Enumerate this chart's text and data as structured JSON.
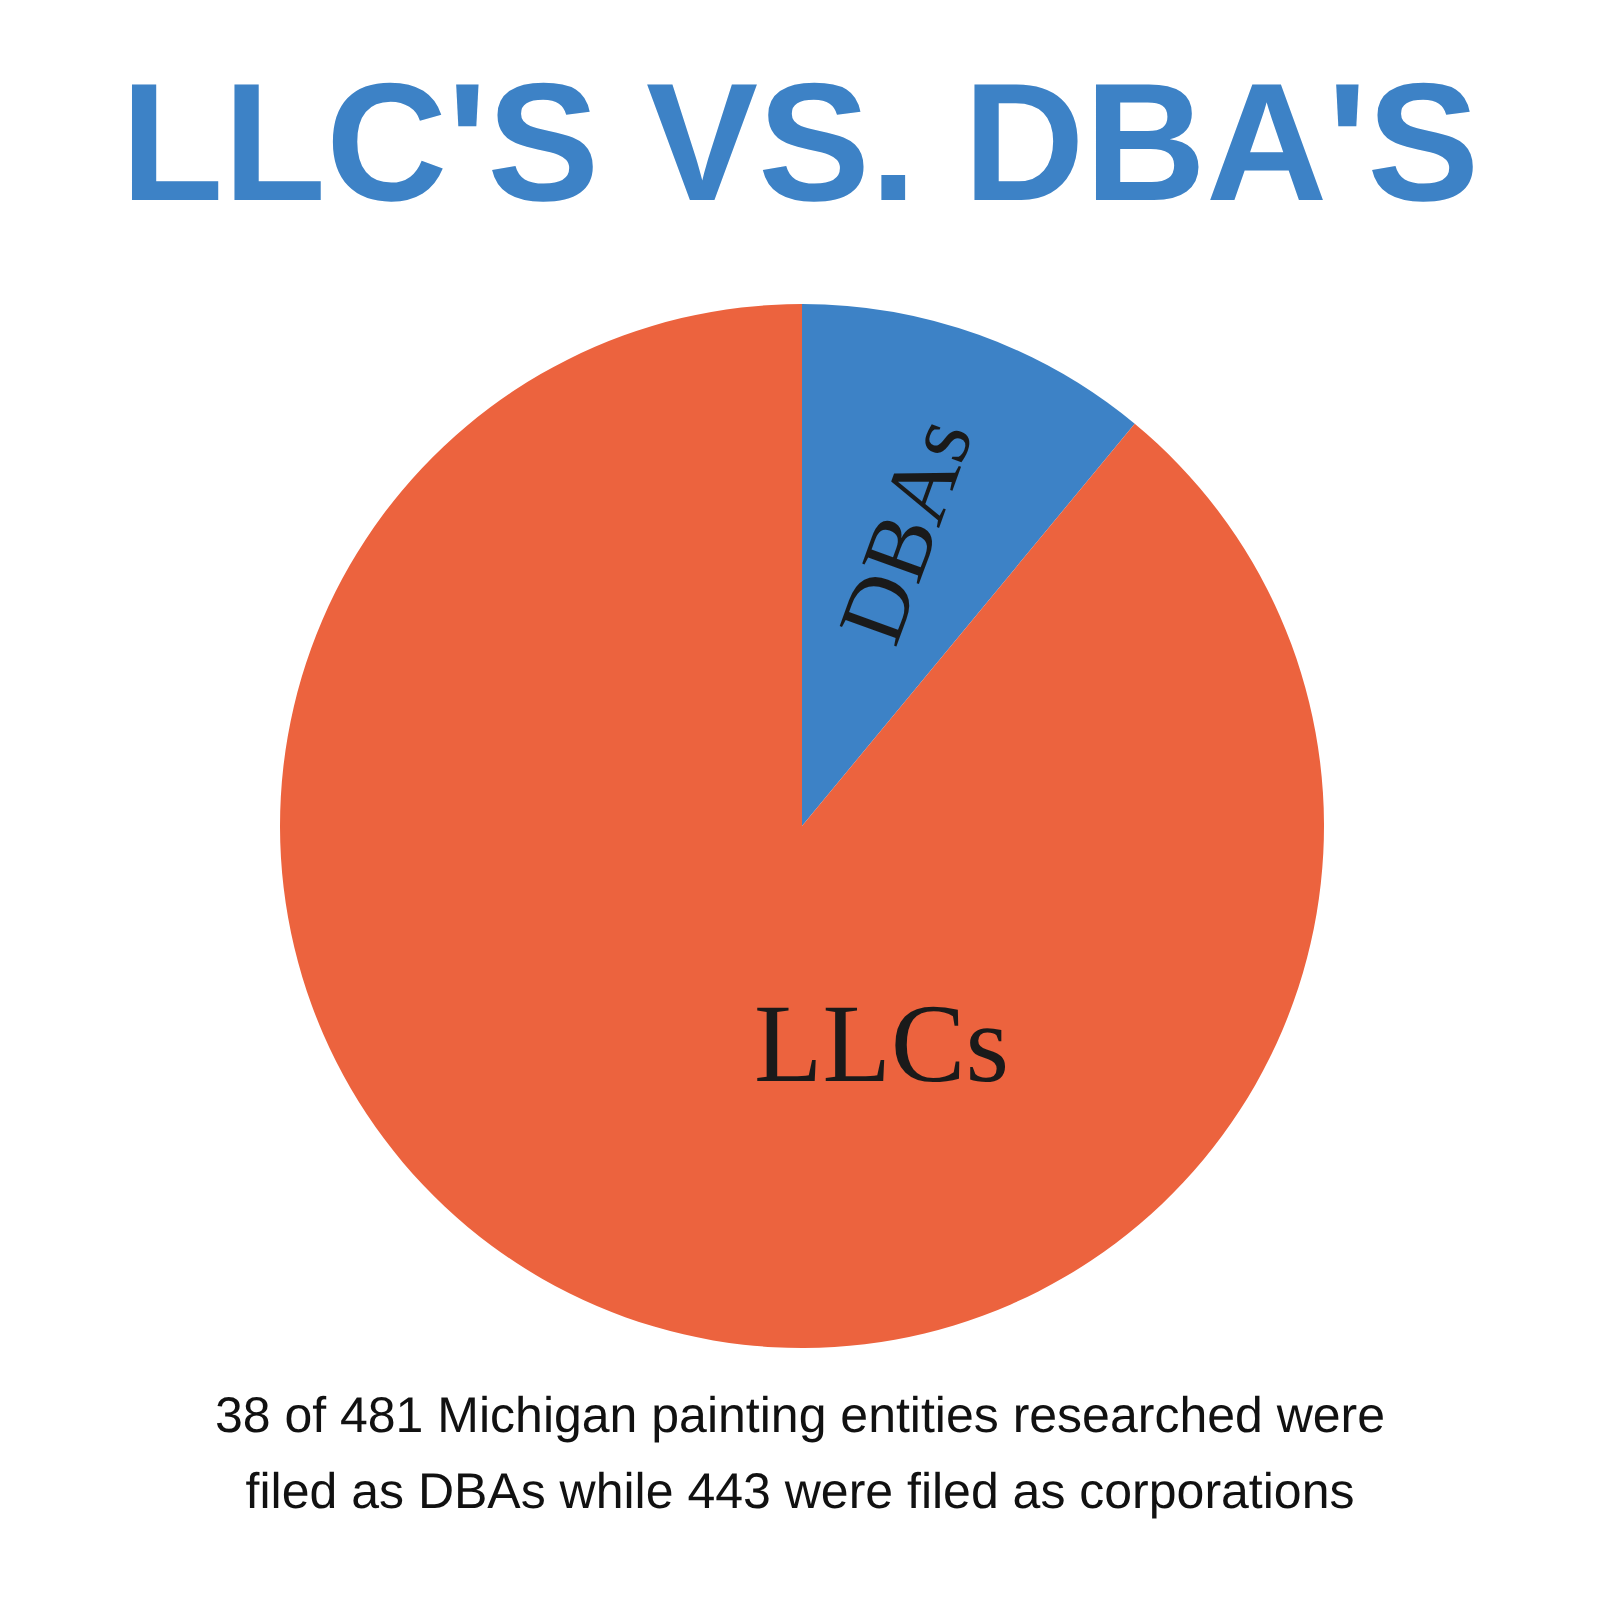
{
  "chart_data": {
    "type": "pie",
    "title": "LLC'S VS. DBA'S",
    "categories": [
      "DBAs",
      "LLCs"
    ],
    "values": [
      11,
      89
    ],
    "colors": [
      "#3d82c6",
      "#ec633e"
    ],
    "annotations": [
      "38 of 481 Michigan painting entities researched were filed as DBAs while 443 were filed as corporations"
    ]
  }
}
